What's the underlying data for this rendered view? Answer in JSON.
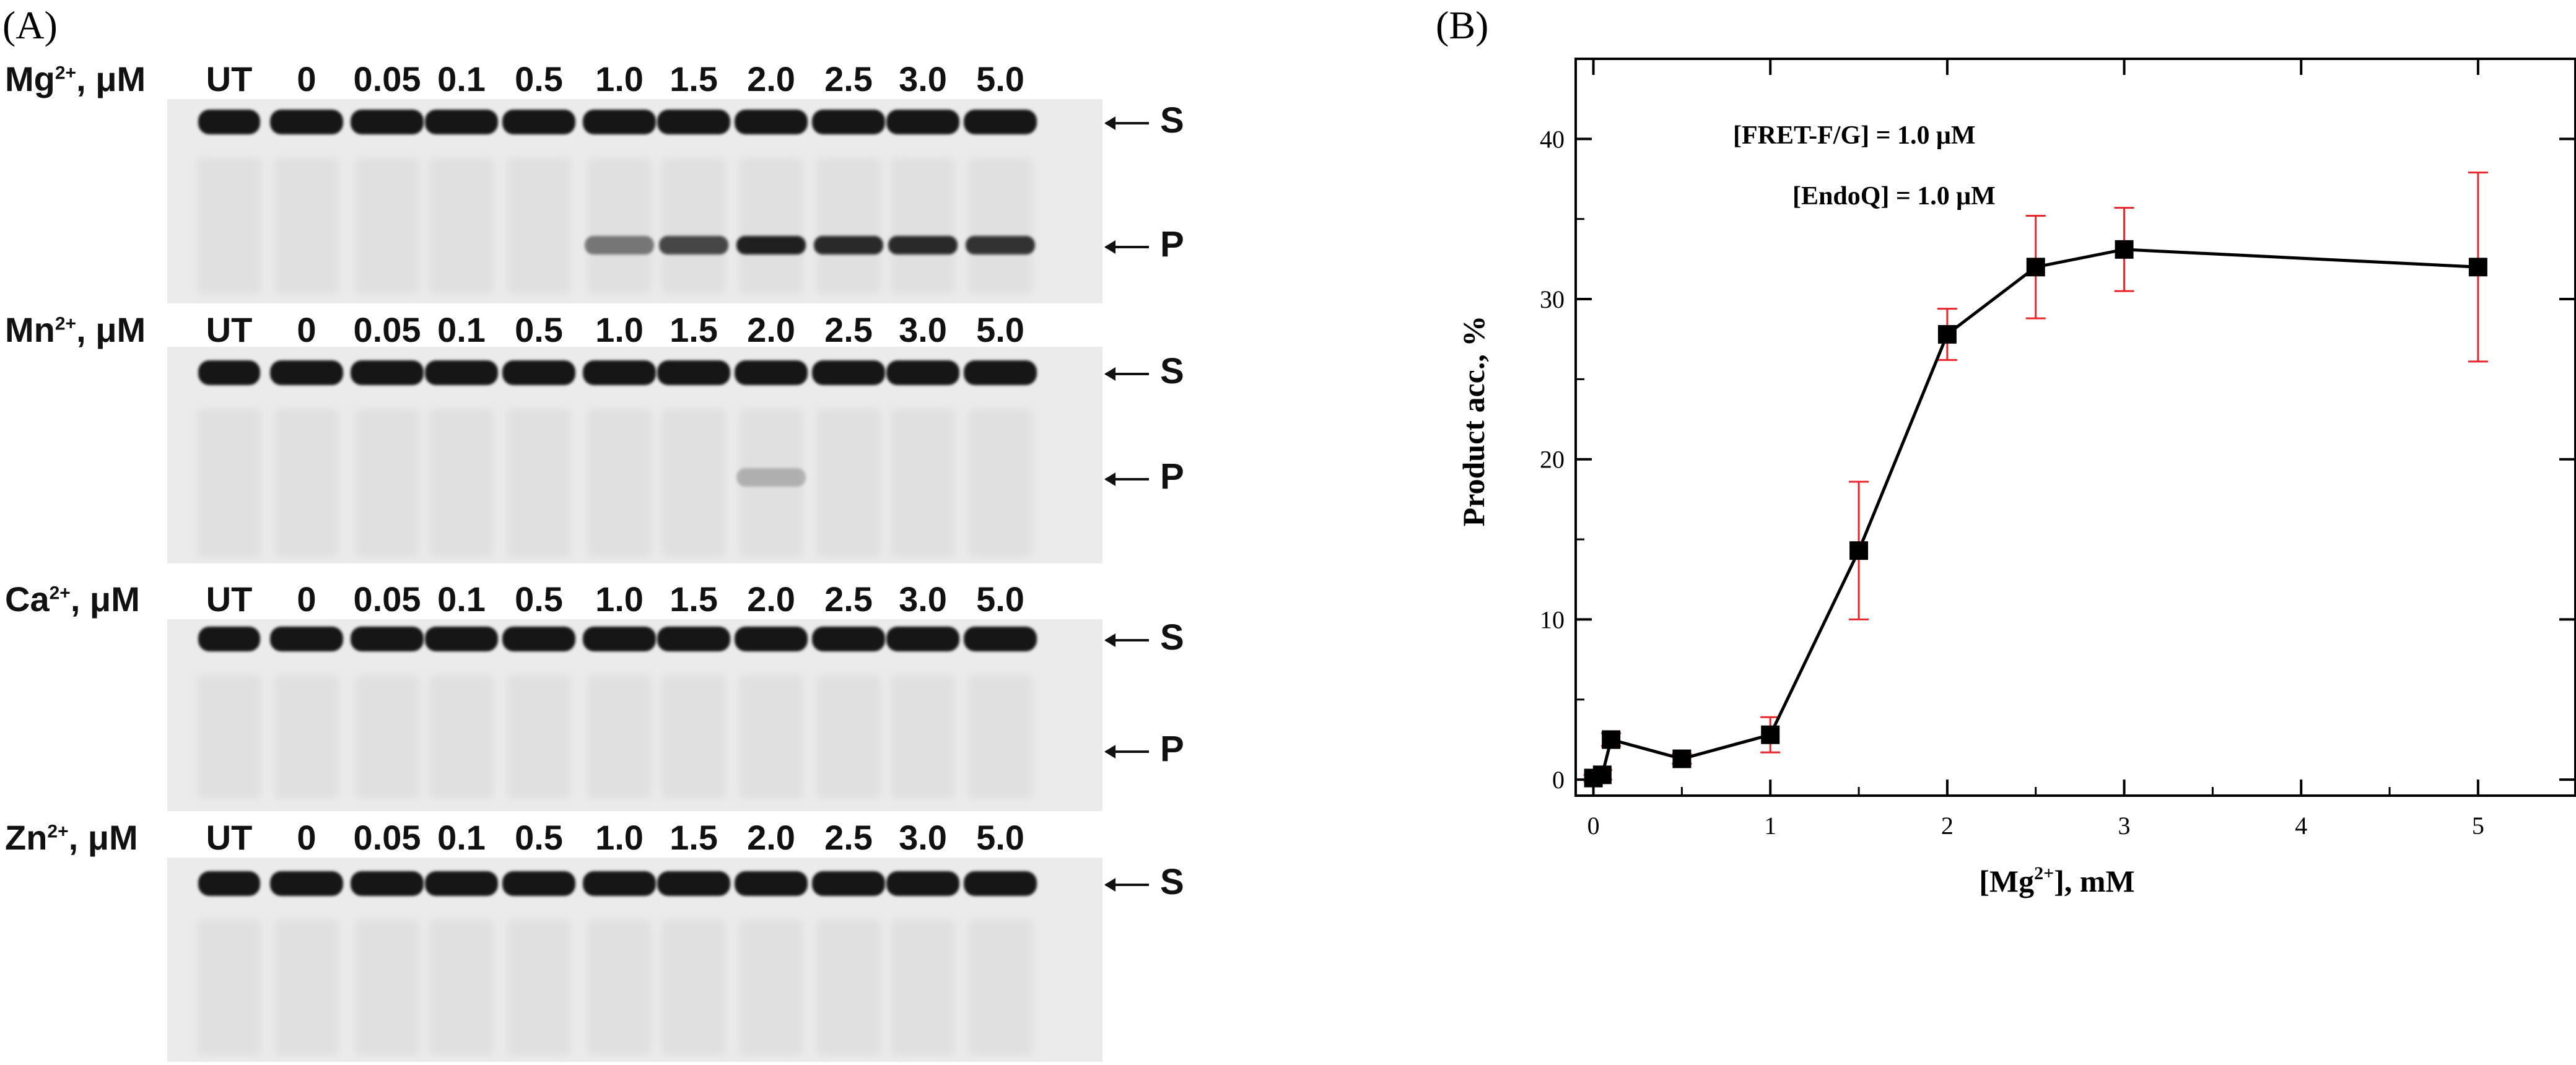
{
  "panel_a": {
    "letter": "(A)",
    "lanes": [
      "UT",
      "0",
      "0.05",
      "0.1",
      "0.5",
      "1.0",
      "1.5",
      "2.0",
      "2.5",
      "3.0",
      "5.0"
    ],
    "substrate_label": "S",
    "product_label": "P",
    "gels": [
      {
        "ion": "Mg",
        "charge": "2+",
        "unit": ", μM",
        "product_visible": true
      },
      {
        "ion": "Mn",
        "charge": "2+",
        "unit": ", μM",
        "product_visible": true
      },
      {
        "ion": "Ca",
        "charge": "2+",
        "unit": ", μM",
        "product_visible": true
      },
      {
        "ion": "Zn",
        "charge": "2+",
        "unit": ", μM",
        "product_visible": false
      }
    ]
  },
  "panel_b": {
    "letter": "(B)",
    "annotation_1": "[FRET-F/G] = 1.0 μM",
    "annotation_2": "[EndoQ] = 1.0 μM",
    "xlabel_prefix": "[Mg",
    "xlabel_sup": "2+",
    "xlabel_suffix": "], mM",
    "ylabel": "Product acc., %"
  },
  "chart_data": {
    "type": "line",
    "x": [
      0,
      0.05,
      0.1,
      0.5,
      1.0,
      1.5,
      2.0,
      2.5,
      3.0,
      5.0
    ],
    "series": [
      {
        "values": [
          0.1,
          0.3,
          2.5,
          1.3,
          2.8,
          14.3,
          27.8,
          32.0,
          33.1,
          32.0
        ],
        "error": [
          0.2,
          0.3,
          0.4,
          0.3,
          1.1,
          4.3,
          1.6,
          3.2,
          2.6,
          5.9
        ],
        "marker": "square",
        "color": "#000000",
        "error_color": "#e8252b"
      }
    ],
    "xlim": [
      -0.1,
      5.55
    ],
    "ylim": [
      -1,
      45
    ],
    "xticks": [
      "0",
      "1",
      "2",
      "3",
      "4",
      "5"
    ],
    "yticks": [
      "0",
      "10",
      "20",
      "30",
      "40"
    ],
    "xlabel": "[Mg2+], mM",
    "ylabel": "Product acc., %",
    "grid": false
  }
}
